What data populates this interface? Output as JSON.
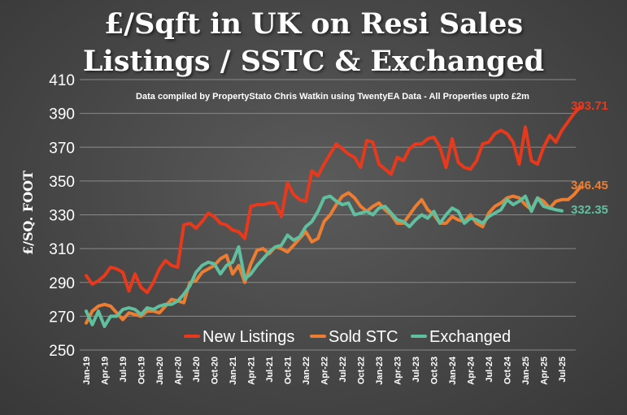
{
  "title_line1": "£/Sqft in UK on Resi Sales",
  "title_line2": "Listings / SSTC & Exchanged",
  "chart_data": {
    "type": "line",
    "title": "£/Sqft in UK on Resi Sales Listings / SSTC & Exchanged",
    "subtitle": "Data compiled by PropertyStato Chris Watkin using TwentyEA Data - All Properties upto £2m",
    "ylabel": "£/SQ. FOOT",
    "xlabel": "",
    "ylim": [
      250,
      410
    ],
    "yticks": [
      250,
      270,
      290,
      310,
      330,
      350,
      370,
      390,
      410
    ],
    "x_tick_labels": [
      "Jan-19",
      "Apr-19",
      "Jul-19",
      "Oct-19",
      "Jan-20",
      "Apr-20",
      "Jul-20",
      "Oct-20",
      "Jan-21",
      "Apr-21",
      "Jul-21",
      "Oct-21",
      "Jan-22",
      "Apr-22",
      "Jul-22",
      "Oct-22",
      "Jan-23",
      "Apr-23",
      "Jul-23",
      "Oct-23",
      "Jan-24",
      "Apr-24",
      "Jul-24",
      "Oct-24",
      "Jan-25",
      "Apr-25",
      "Jul-25"
    ],
    "x_start": "Jan-19",
    "grid": true,
    "legend_position": "bottom",
    "series": [
      {
        "name": "New Listings",
        "color": "#e8391c",
        "end_label": "393.71",
        "values": [
          294,
          289,
          291,
          294,
          299,
          298,
          296,
          285,
          295,
          287,
          284,
          290,
          298,
          303,
          300,
          299,
          324,
          325,
          322,
          326,
          331,
          329,
          325,
          324,
          321,
          320,
          316,
          335,
          336,
          336,
          337,
          337,
          329,
          349,
          342,
          339,
          338,
          356,
          353,
          360,
          366,
          372,
          369,
          366,
          364,
          358,
          374,
          373,
          360,
          357,
          354,
          364,
          362,
          369,
          372,
          372,
          375,
          376,
          370,
          358,
          375,
          361,
          358,
          357,
          362,
          372,
          373,
          378,
          380,
          378,
          373,
          360,
          382,
          362,
          360,
          370,
          377,
          373,
          380,
          385,
          390,
          393.71
        ]
      },
      {
        "name": "Sold STC",
        "color": "#ed7d31",
        "end_label": "346.45",
        "values": [
          266,
          273,
          276,
          277,
          276,
          272,
          268,
          272,
          271,
          270,
          273,
          273,
          272,
          276,
          280,
          279,
          278,
          290,
          291,
          296,
          298,
          300,
          304,
          306,
          295,
          300,
          290,
          301,
          309,
          310,
          307,
          311,
          310,
          308,
          312,
          316,
          320,
          314,
          316,
          326,
          330,
          336,
          341,
          343,
          340,
          335,
          332,
          335,
          337,
          333,
          330,
          325,
          325,
          330,
          335,
          339,
          333,
          330,
          325,
          325,
          329,
          327,
          326,
          330,
          325,
          323,
          331,
          335,
          337,
          340,
          341,
          340,
          336,
          333,
          340,
          338,
          334,
          338,
          339,
          339,
          342,
          346.45
        ]
      },
      {
        "name": "Exchanged",
        "color": "#5fbf9e",
        "end_label": "332.35",
        "values": [
          273,
          265,
          273,
          264,
          270,
          270,
          274,
          275,
          274,
          271,
          275,
          274,
          276,
          277,
          277,
          279,
          283,
          288,
          296,
          300,
          302,
          301,
          295,
          300,
          302,
          311,
          292,
          295,
          300,
          304,
          308,
          311,
          312,
          318,
          315,
          317,
          323,
          326,
          332,
          340,
          341,
          338,
          336,
          337,
          330,
          331,
          332,
          330,
          334,
          335,
          331,
          327,
          326,
          323,
          327,
          330,
          328,
          332,
          325,
          330,
          334,
          332,
          325,
          328,
          327,
          325,
          329,
          331,
          333,
          339,
          336,
          338,
          341,
          332,
          340,
          335,
          334,
          333,
          332.35
        ]
      }
    ]
  }
}
